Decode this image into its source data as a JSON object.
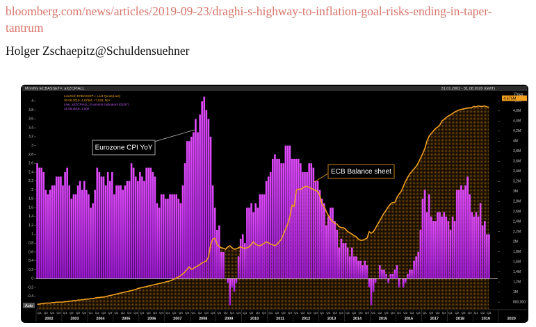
{
  "link": "bloomberg.com/news/articles/2019-09-23/draghi-s-highway-to-inflation-goal-risks-ending-in-taper-tantrum",
  "author": "Holger Zschaepitz@Schuldensuehner",
  "chart_data": {
    "type": "combo",
    "title": "Monthly ECBASSET=; aXZCPIALL",
    "date_range": "31.01.2002 - 31.08.2020 (GMT)",
    "legend_lines": [
      "LineGrd; ECBASSET=; Last Quote(Last)",
      "30.08.2019; 4,675M; +7,034; N/A",
      "Line; aXZCPIALL; Economic Indicators (01/57)",
      "31.08.2019; 1,000"
    ],
    "y2_label": "Price",
    "footer": "Auto",
    "categories": [
      "Q1",
      null,
      null,
      "Q2",
      null,
      null,
      "Q3",
      null,
      null,
      "Q4",
      null,
      null,
      "Q1",
      null,
      null,
      "Q2",
      null,
      null,
      "Q3",
      null,
      null,
      "Q4",
      null,
      null,
      "Q1",
      null,
      null,
      "Q2",
      null,
      null,
      "Q3",
      null,
      null,
      "Q4",
      null,
      null,
      "Q1",
      null,
      null,
      "Q2",
      null,
      null,
      "Q3",
      null,
      null,
      "Q4",
      null,
      null,
      "Q1",
      null,
      null,
      "Q2",
      null,
      null,
      "Q3",
      null,
      null,
      "Q4",
      null,
      null,
      "Q1",
      null,
      null,
      "Q2",
      null,
      null,
      "Q3",
      null,
      null,
      "Q4",
      null,
      null,
      "Q1",
      null,
      null,
      "Q2",
      null,
      null,
      "Q3",
      null,
      null,
      "Q4",
      null,
      null,
      "Q1",
      null,
      null,
      "Q2",
      null,
      null,
      "Q3",
      null,
      null,
      "Q4",
      null,
      null,
      "Q1",
      null,
      null,
      "Q2",
      null,
      null,
      "Q3",
      null,
      null,
      "Q4",
      null,
      null,
      "Q1",
      null,
      null,
      "Q2",
      null,
      null,
      "Q3",
      null,
      null,
      "Q4",
      null,
      null,
      "Q1",
      null,
      null,
      "Q2",
      null,
      null,
      "Q3",
      null,
      null,
      "Q4",
      null,
      null,
      "Q1",
      null,
      null,
      "Q2",
      null,
      null,
      "Q3",
      null,
      null,
      "Q4",
      null,
      null,
      "Q1",
      null,
      null,
      "Q2",
      null,
      null,
      "Q3",
      null,
      null,
      "Q4",
      null,
      null,
      "Q1",
      null,
      null,
      "Q2",
      null,
      null,
      "Q3",
      null,
      null,
      "Q4",
      null,
      null,
      "Q1",
      null,
      null,
      "Q2",
      null,
      null,
      "Q3",
      null,
      null,
      "Q4",
      null,
      null,
      "Q1",
      null,
      null,
      "Q2",
      null,
      null,
      "Q3",
      null,
      null,
      "Q4",
      null,
      null,
      "Q1",
      null,
      null,
      "Q2",
      null,
      null,
      "Q3",
      null,
      null,
      "Q4",
      null,
      null,
      "Q1",
      null,
      null,
      "Q2",
      null,
      null,
      "Q3",
      null
    ],
    "years": [
      "2002",
      "2003",
      "2004",
      "2005",
      "2006",
      "2007",
      "2008",
      "2009",
      "2010",
      "2011",
      "2012",
      "2013",
      "2014",
      "2015",
      "2016",
      "2017",
      "2018",
      "2019",
      "2020"
    ],
    "series": [
      {
        "name": "Eurozone CPI YoY",
        "color": "#c030f0",
        "values": [
          2.6,
          2.5,
          2.5,
          2.4,
          2.0,
          1.9,
          2.0,
          2.1,
          2.1,
          2.3,
          2.3,
          2.3,
          2.1,
          2.4,
          2.5,
          2.1,
          1.8,
          1.9,
          1.9,
          2.1,
          2.2,
          2.0,
          2.2,
          2.0,
          1.9,
          1.6,
          1.7,
          2.0,
          2.5,
          2.4,
          2.3,
          2.3,
          2.1,
          2.4,
          2.2,
          2.4,
          1.9,
          2.1,
          2.1,
          2.1,
          2.0,
          2.1,
          2.2,
          2.2,
          2.6,
          2.5,
          2.3,
          2.2,
          2.4,
          2.3,
          2.2,
          2.5,
          2.5,
          2.5,
          2.4,
          2.3,
          1.7,
          1.6,
          1.9,
          1.9,
          1.8,
          1.8,
          1.9,
          1.9,
          1.9,
          1.9,
          1.8,
          1.7,
          2.1,
          2.6,
          3.1,
          3.1,
          3.2,
          3.3,
          3.6,
          3.3,
          3.7,
          4.0,
          4.1,
          3.8,
          3.6,
          3.2,
          2.1,
          1.6,
          1.1,
          1.2,
          0.6,
          0.6,
          0.0,
          -0.1,
          -0.6,
          -0.2,
          -0.3,
          -0.1,
          0.5,
          0.9,
          1.0,
          0.8,
          1.6,
          1.6,
          1.7,
          1.5,
          1.7,
          1.6,
          1.9,
          1.9,
          1.9,
          2.2,
          2.3,
          2.4,
          2.7,
          2.8,
          2.7,
          2.7,
          2.6,
          2.6,
          3.0,
          3.0,
          3.0,
          2.7,
          2.7,
          2.7,
          2.7,
          2.6,
          2.4,
          2.4,
          2.4,
          2.6,
          2.6,
          2.5,
          2.2,
          2.2,
          2.0,
          1.8,
          1.7,
          1.2,
          1.4,
          1.6,
          1.6,
          1.3,
          1.1,
          0.7,
          0.9,
          0.8,
          0.8,
          0.7,
          0.5,
          0.7,
          0.5,
          0.5,
          0.4,
          0.4,
          0.3,
          0.4,
          0.3,
          -0.2,
          -0.6,
          -0.3,
          -0.1,
          0.0,
          0.3,
          0.2,
          0.2,
          0.1,
          -0.1,
          0.1,
          0.1,
          0.2,
          0.3,
          -0.2,
          0.0,
          -0.2,
          -0.1,
          0.1,
          0.2,
          0.2,
          0.4,
          0.5,
          0.6,
          1.1,
          1.8,
          2.0,
          1.5,
          1.9,
          1.4,
          1.3,
          1.3,
          1.5,
          1.5,
          1.4,
          1.5,
          1.4,
          1.3,
          1.1,
          1.4,
          1.3,
          2.0,
          2.0,
          2.1,
          2.0,
          2.1,
          2.3,
          1.9,
          1.5,
          1.4,
          1.5,
          1.4,
          1.7,
          1.2,
          1.3,
          1.0,
          1.0
        ]
      },
      {
        "name": "ECB Balance sheet",
        "color": "#f0a020",
        "axis": "y2",
        "last_label": "4,675M",
        "values": [
          0.76,
          0.76,
          0.77,
          0.77,
          0.78,
          0.78,
          0.78,
          0.79,
          0.79,
          0.8,
          0.8,
          0.8,
          0.8,
          0.81,
          0.81,
          0.82,
          0.82,
          0.83,
          0.83,
          0.84,
          0.84,
          0.85,
          0.85,
          0.86,
          0.86,
          0.87,
          0.87,
          0.88,
          0.89,
          0.89,
          0.9,
          0.9,
          0.91,
          0.92,
          0.93,
          0.94,
          0.95,
          0.96,
          0.97,
          0.98,
          0.99,
          1.0,
          1.01,
          1.02,
          1.03,
          1.04,
          1.05,
          1.07,
          1.08,
          1.09,
          1.1,
          1.11,
          1.12,
          1.13,
          1.14,
          1.15,
          1.16,
          1.17,
          1.18,
          1.19,
          1.2,
          1.21,
          1.22,
          1.24,
          1.26,
          1.28,
          1.3,
          1.33,
          1.36,
          1.4,
          1.45,
          1.5,
          1.45,
          1.47,
          1.5,
          1.52,
          1.55,
          1.58,
          1.6,
          1.62,
          1.7,
          1.95,
          2.05,
          2.07,
          1.95,
          1.9,
          1.88,
          1.87,
          1.85,
          1.9,
          1.92,
          1.88,
          1.85,
          1.86,
          1.88,
          1.9,
          1.88,
          1.87,
          1.88,
          1.9,
          1.95,
          2.0,
          1.95,
          1.93,
          1.92,
          1.94,
          1.97,
          2.0,
          1.98,
          1.95,
          1.94,
          1.92,
          1.95,
          2.0,
          2.05,
          2.15,
          2.25,
          2.35,
          2.5,
          2.73,
          2.7,
          3.02,
          3.05,
          3.04,
          3.07,
          3.1,
          3.1,
          3.08,
          3.06,
          3.04,
          3.02,
          3.0,
          2.92,
          2.75,
          2.7,
          2.6,
          2.52,
          2.45,
          2.4,
          2.37,
          2.35,
          2.3,
          2.28,
          2.28,
          2.25,
          2.2,
          2.18,
          2.15,
          2.12,
          2.1,
          2.05,
          2.03,
          2.03,
          2.05,
          2.07,
          2.2,
          2.17,
          2.2,
          2.27,
          2.35,
          2.42,
          2.5,
          2.57,
          2.63,
          2.7,
          2.75,
          2.78,
          2.78,
          2.88,
          2.95,
          3.0,
          3.1,
          3.2,
          3.28,
          3.35,
          3.4,
          3.45,
          3.5,
          3.57,
          3.66,
          3.75,
          3.85,
          4.0,
          4.1,
          4.15,
          4.2,
          4.25,
          4.28,
          4.32,
          4.4,
          4.43,
          4.47,
          4.5,
          4.52,
          4.55,
          4.58,
          4.6,
          4.62,
          4.63,
          4.64,
          4.65,
          4.66,
          4.66,
          4.67,
          4.69,
          4.68,
          4.7,
          4.69,
          4.69,
          4.7,
          4.68,
          4.675
        ]
      }
    ],
    "ylim": [
      -0.7,
      4.2
    ],
    "yticks": [
      {
        "value": -0.4,
        "label": "-0,4"
      },
      {
        "value": -0.2,
        "label": "-0,2"
      },
      0,
      {
        "value": 0.2,
        "label": "0,2"
      },
      {
        "value": 0.4,
        "label": "0,4"
      },
      {
        "value": 0.6,
        "label": "0,6"
      },
      {
        "value": 0.8,
        "label": "0,8"
      },
      1,
      {
        "value": 1.2,
        "label": "1,2"
      },
      {
        "value": 1.4,
        "label": "1,4"
      },
      {
        "value": 1.6,
        "label": "1,6"
      },
      {
        "value": 1.8,
        "label": "1,8"
      },
      2,
      {
        "value": 2.2,
        "label": "2,2"
      },
      {
        "value": 2.4,
        "label": "2,4"
      },
      {
        "value": 2.6,
        "label": "2,6"
      },
      {
        "value": 2.8,
        "label": "2,8"
      },
      3,
      {
        "value": 3.2,
        "label": "3,2"
      },
      {
        "value": 3.4,
        "label": "3,4"
      },
      {
        "value": 3.6,
        "label": "3,6"
      },
      {
        "value": 3.8,
        "label": "3,8"
      },
      4
    ],
    "y2lim": [
      0.65,
      4.97
    ],
    "y2ticks": [
      {
        "value": 0.8,
        "label": "800,000"
      },
      {
        "value": 1,
        "label": "1M"
      },
      {
        "value": 1.2,
        "label": "1,2M"
      },
      {
        "value": 1.4,
        "label": "1,4M"
      },
      {
        "value": 1.6,
        "label": "1,6M"
      },
      {
        "value": 1.8,
        "label": "1,8M"
      },
      {
        "value": 2,
        "label": "2M"
      },
      {
        "value": 2.2,
        "label": "2,2M"
      },
      {
        "value": 2.4,
        "label": "2,4M"
      },
      {
        "value": 2.6,
        "label": "2,6M"
      },
      {
        "value": 2.8,
        "label": "2,8M"
      },
      {
        "value": 3,
        "label": "3M"
      },
      {
        "value": 3.2,
        "label": "3,2M"
      },
      {
        "value": 3.4,
        "label": "3,4M"
      },
      {
        "value": 3.6,
        "label": "3,6M"
      },
      {
        "value": 3.8,
        "label": "3,8M"
      },
      {
        "value": 4,
        "label": "4M"
      },
      {
        "value": 4.2,
        "label": "4,2M"
      },
      {
        "value": 4.4,
        "label": "4,4M"
      },
      {
        "value": 4.6,
        "label": "4,6M"
      },
      {
        "value": 4.8,
        "label": "4,8M"
      }
    ],
    "grid": false
  }
}
